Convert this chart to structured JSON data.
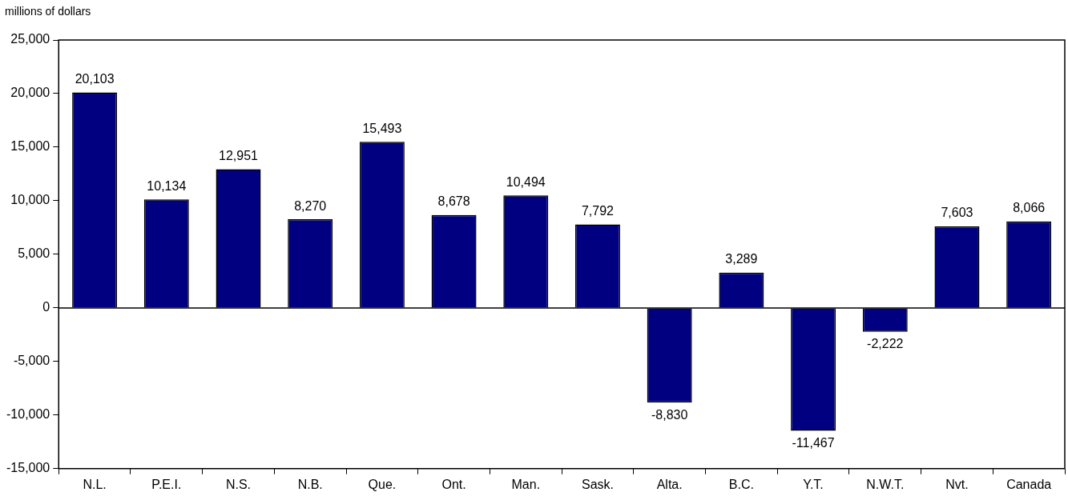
{
  "chart_data": {
    "type": "bar",
    "ylabel": "millions of dollars",
    "categories": [
      "N.L.",
      "P.E.I.",
      "N.S.",
      "N.B.",
      "Que.",
      "Ont.",
      "Man.",
      "Sask.",
      "Alta.",
      "B.C.",
      "Y.T.",
      "N.W.T.",
      "Nvt.",
      "Canada"
    ],
    "values": [
      20103,
      10134,
      12951,
      8270,
      15493,
      8678,
      10494,
      7792,
      -8830,
      3289,
      -11467,
      -2222,
      7603,
      8066
    ],
    "value_labels": [
      "20,103",
      "10,134",
      "12,951",
      "8,270",
      "15,493",
      "8,678",
      "10,494",
      "7,792",
      "-8,830",
      "3,289",
      "-11,467",
      "-2,222",
      "7,603",
      "8,066"
    ],
    "color": "#000080",
    "ylim": [
      -15000,
      25000
    ],
    "yticks": [
      {
        "value": -15000,
        "label": "-15,000"
      },
      {
        "value": -10000,
        "label": "-10,000"
      },
      {
        "value": -5000,
        "label": "-5,000"
      },
      {
        "value": 0,
        "label": "0"
      },
      {
        "value": 5000,
        "label": "5,000"
      },
      {
        "value": 10000,
        "label": "10,000"
      },
      {
        "value": 15000,
        "label": "15,000"
      },
      {
        "value": 20000,
        "label": "20,000"
      },
      {
        "value": 25000,
        "label": "25,000"
      }
    ],
    "legend": false
  }
}
